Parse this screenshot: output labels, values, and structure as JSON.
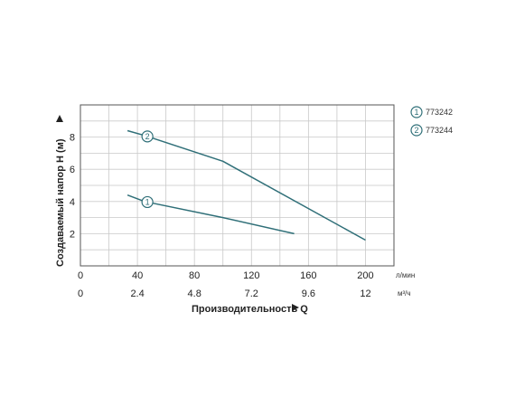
{
  "chart_data": {
    "type": "line",
    "xlabel": "Производительность Q",
    "ylabel": "Создаваемый напор H (м)",
    "x_unit_primary": "л/мин",
    "x_unit_secondary": "м³/ч",
    "xlim": [
      0,
      220
    ],
    "ylim": [
      0,
      10
    ],
    "x_ticks_primary": [
      0,
      40,
      80,
      120,
      160,
      200
    ],
    "x_tick_labels_primary": [
      "0",
      "40",
      "80",
      "120",
      "160",
      "200"
    ],
    "x_ticks_secondary": [
      0,
      40,
      80,
      120,
      160,
      200
    ],
    "x_tick_labels_secondary": [
      "0",
      "2.4",
      "4.8",
      "7.2",
      "9.6",
      "12"
    ],
    "y_ticks": [
      2,
      4,
      6,
      8
    ],
    "y_tick_labels": [
      "2",
      "4",
      "6",
      "8"
    ],
    "grid": true,
    "legend_position": "top-right",
    "line_color": "#2f6f78",
    "series": [
      {
        "name": "773242",
        "marker": "1",
        "x": [
          33,
          45,
          100,
          150
        ],
        "y": [
          4.4,
          4.0,
          3.0,
          2.0
        ],
        "marker_at_x": 47
      },
      {
        "name": "773244",
        "marker": "2",
        "x": [
          33,
          45,
          100,
          200
        ],
        "y": [
          8.4,
          8.1,
          6.5,
          1.6
        ],
        "marker_at_x": 47
      }
    ]
  }
}
